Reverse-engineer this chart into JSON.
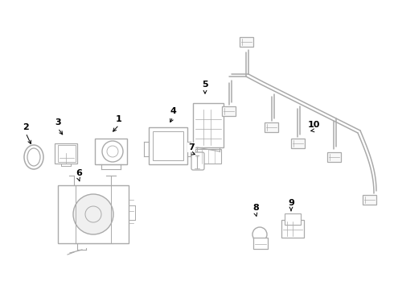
{
  "bg_color": "#ffffff",
  "lc": "#aaaaaa",
  "dc": "#666666",
  "label_color": "#000000",
  "fig_width": 4.9,
  "fig_height": 3.6,
  "dpi": 100
}
